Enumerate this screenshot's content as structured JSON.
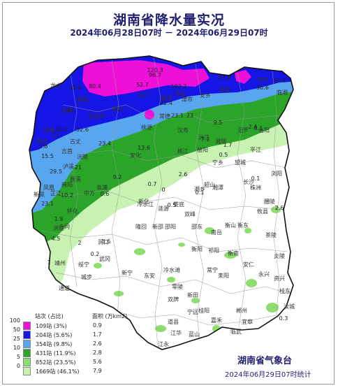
{
  "header": {
    "title": "湖南省降水量实况",
    "period": "2024年06月28日07时 － 2024年06月29日07时"
  },
  "colors": {
    "c100": "#ee10d8",
    "c50": "#1515e6",
    "c25": "#58a6f0",
    "c10": "#2aa52a",
    "c5": "#8ede6e",
    "c0": "#c8f2b2",
    "dry": "#ffffff",
    "border": "#111111",
    "county_border": "#999999"
  },
  "legend": {
    "col_count": "站次 (占比)",
    "col_area": "面积 (万km2)",
    "rows": [
      {
        "threshold": "100",
        "count": "109站 (3%)",
        "area": "0.9"
      },
      {
        "threshold": "50",
        "count": "204站 (5.6%)",
        "area": "1.7"
      },
      {
        "threshold": "25",
        "count": "354站 (9.8%)",
        "area": "2.6"
      },
      {
        "threshold": "10",
        "count": "431站 (11.9%)",
        "area": "2.8"
      },
      {
        "threshold": "5",
        "count": "852站 (23.5%)",
        "area": "5.6"
      },
      {
        "threshold": "0",
        "count": "1669站 (46.1%)",
        "area": "7.9"
      }
    ]
  },
  "footer": {
    "org": "湖南省气象台",
    "stamp": "2024年06月29日07时统计"
  },
  "values": [
    "120.3",
    "96.7",
    "87.8",
    "80.4",
    "52.7",
    "45.8",
    "103.2",
    "46",
    "40.4",
    "30.6",
    "22.4",
    "23.1",
    "23",
    "38.2",
    "32.6",
    "21",
    "9.5",
    "0.1",
    "15.5",
    "23.4",
    "7.2",
    "1.7",
    "2.4",
    "13.6",
    "0.5",
    "0.1",
    "29.5",
    "21",
    "9.2",
    "0.7",
    "0.1",
    "10.2",
    "23.1",
    "1.9",
    "4.5",
    "2",
    "5.6",
    "0.2",
    "1",
    "0.3",
    "2.8",
    "0",
    "2.6",
    "0.5",
    "2.6",
    "0.6"
  ],
  "cities": [
    "龙山",
    "桑植",
    "永顺",
    "张家界",
    "慈利",
    "石门",
    "澧县",
    "临澧",
    "津市",
    "安乡",
    "南县",
    "华容",
    "岳阳",
    "临湘",
    "保靖",
    "花垣",
    "古丈",
    "吉首",
    "沅陵",
    "常德",
    "汉寿",
    "桃源",
    "益阳",
    "沅江",
    "湘阴",
    "汨罗",
    "平江",
    "凤凰",
    "麻阳",
    "泸溪",
    "辰溪",
    "溆浦",
    "安化",
    "桃江",
    "宁乡",
    "望城",
    "长沙",
    "浏阳",
    "怀化",
    "芷江",
    "新晃",
    "中方",
    "洪江",
    "会同",
    "靖州",
    "通道",
    "新化",
    "冷水江",
    "涟源",
    "娄底",
    "双峰",
    "湘乡",
    "韶山",
    "湘潭",
    "株洲",
    "醴陵",
    "攸县",
    "衡山",
    "南岳",
    "衡东",
    "茶陵",
    "炎陵",
    "邵阳",
    "邵东",
    "新邵",
    "隆回",
    "洞口",
    "武冈",
    "城步",
    "绥宁",
    "新宁",
    "东安",
    "冷水滩",
    "零陵",
    "祁阳",
    "衡阳",
    "衡南",
    "耒阳",
    "常宁",
    "安仁",
    "永兴",
    "资兴",
    "桂东",
    "郴州",
    "宜章",
    "临武",
    "嘉禾",
    "桂阳",
    "新田",
    "宁远",
    "道县",
    "江永",
    "江华",
    "蓝山",
    "双牌",
    "汝城"
  ]
}
